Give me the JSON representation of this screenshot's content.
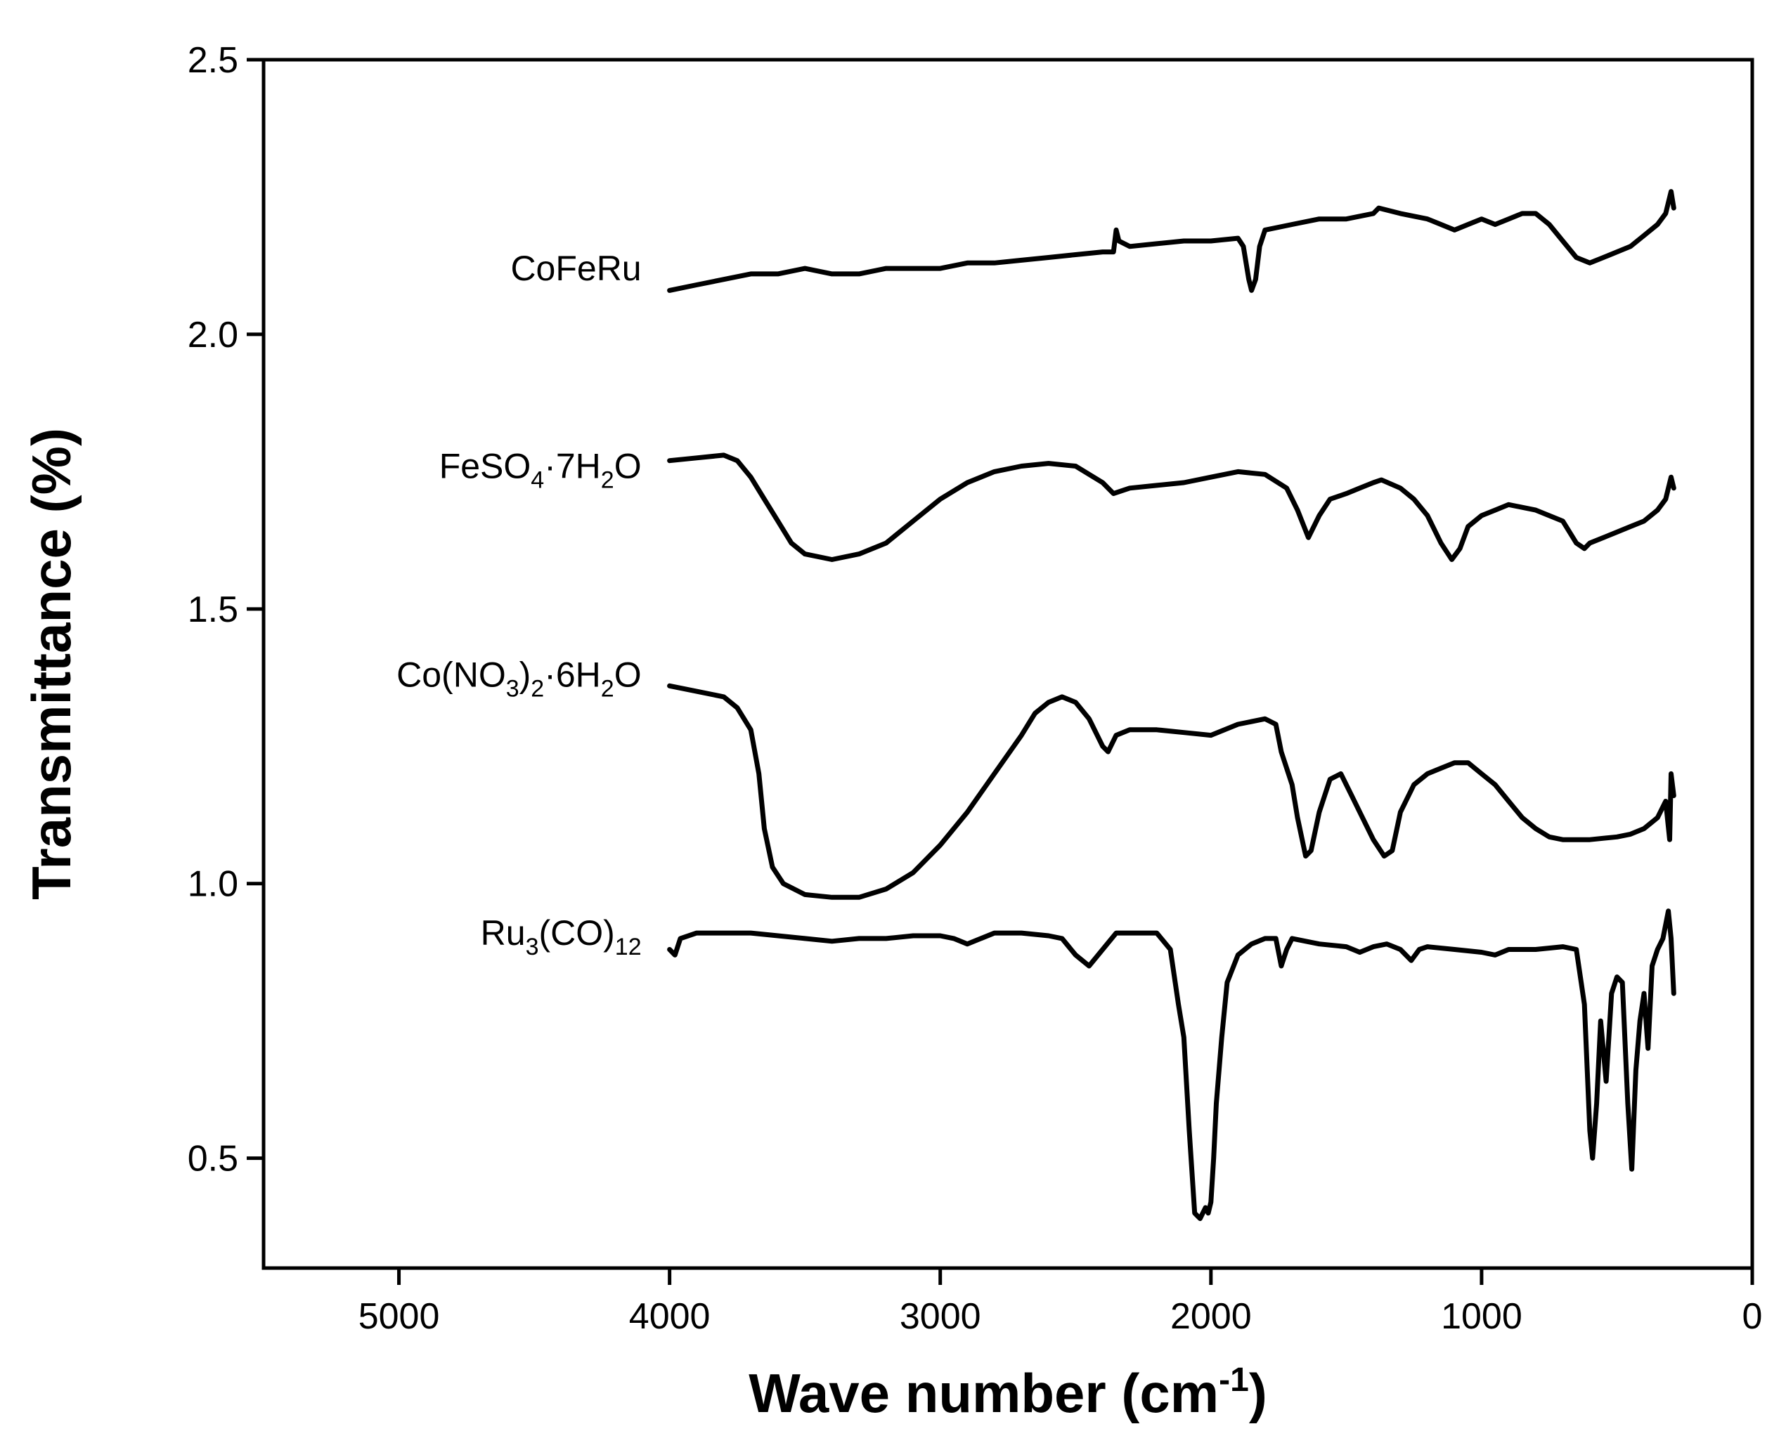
{
  "chart_data": {
    "type": "line",
    "xlabel": {
      "main": "Wave number (cm",
      "sup": "-1",
      "close": ")"
    },
    "ylabel": "Transmittance (%)",
    "xlim": [
      5500,
      0
    ],
    "ylim": [
      0.3,
      2.5
    ],
    "x_ticks": [
      5000,
      4000,
      3000,
      2000,
      1000,
      0
    ],
    "x_tick_labels": [
      "5000",
      "4000",
      "3000",
      "2000",
      "1000",
      "0"
    ],
    "y_ticks": [
      0.5,
      1.0,
      1.5,
      2.0,
      2.5
    ],
    "y_tick_labels": [
      "0.5",
      "1.0",
      "1.5",
      "2.0",
      "2.5"
    ],
    "series": [
      {
        "name": "CoFeRu",
        "label_parts": [
          {
            "t": "CoFeRu"
          }
        ],
        "label_y": 2.12,
        "points": [
          [
            4000,
            2.08
          ],
          [
            3900,
            2.09
          ],
          [
            3800,
            2.1
          ],
          [
            3700,
            2.11
          ],
          [
            3600,
            2.11
          ],
          [
            3500,
            2.12
          ],
          [
            3400,
            2.11
          ],
          [
            3300,
            2.11
          ],
          [
            3200,
            2.12
          ],
          [
            3100,
            2.12
          ],
          [
            3000,
            2.12
          ],
          [
            2900,
            2.13
          ],
          [
            2800,
            2.13
          ],
          [
            2700,
            2.135
          ],
          [
            2600,
            2.14
          ],
          [
            2500,
            2.145
          ],
          [
            2400,
            2.15
          ],
          [
            2360,
            2.15
          ],
          [
            2350,
            2.19
          ],
          [
            2340,
            2.17
          ],
          [
            2300,
            2.16
          ],
          [
            2200,
            2.165
          ],
          [
            2100,
            2.17
          ],
          [
            2000,
            2.17
          ],
          [
            1900,
            2.175
          ],
          [
            1880,
            2.16
          ],
          [
            1860,
            2.1
          ],
          [
            1850,
            2.08
          ],
          [
            1835,
            2.1
          ],
          [
            1820,
            2.16
          ],
          [
            1800,
            2.19
          ],
          [
            1700,
            2.2
          ],
          [
            1600,
            2.21
          ],
          [
            1500,
            2.21
          ],
          [
            1400,
            2.22
          ],
          [
            1380,
            2.23
          ],
          [
            1300,
            2.22
          ],
          [
            1200,
            2.21
          ],
          [
            1150,
            2.2
          ],
          [
            1100,
            2.19
          ],
          [
            1050,
            2.2
          ],
          [
            1000,
            2.21
          ],
          [
            950,
            2.2
          ],
          [
            900,
            2.21
          ],
          [
            850,
            2.22
          ],
          [
            800,
            2.22
          ],
          [
            750,
            2.2
          ],
          [
            700,
            2.17
          ],
          [
            650,
            2.14
          ],
          [
            600,
            2.13
          ],
          [
            550,
            2.14
          ],
          [
            500,
            2.15
          ],
          [
            450,
            2.16
          ],
          [
            400,
            2.18
          ],
          [
            350,
            2.2
          ],
          [
            320,
            2.22
          ],
          [
            300,
            2.26
          ],
          [
            290,
            2.23
          ]
        ]
      },
      {
        "name": "FeSO4·7H2O",
        "label_parts": [
          {
            "t": "FeSO"
          },
          {
            "t": "4",
            "sub": true
          },
          {
            "t": "·7H"
          },
          {
            "t": "2",
            "sub": true
          },
          {
            "t": "O"
          }
        ],
        "label_y": 1.76,
        "points": [
          [
            4000,
            1.77
          ],
          [
            3900,
            1.775
          ],
          [
            3800,
            1.78
          ],
          [
            3750,
            1.77
          ],
          [
            3700,
            1.74
          ],
          [
            3650,
            1.7
          ],
          [
            3600,
            1.66
          ],
          [
            3550,
            1.62
          ],
          [
            3500,
            1.6
          ],
          [
            3400,
            1.59
          ],
          [
            3300,
            1.6
          ],
          [
            3200,
            1.62
          ],
          [
            3100,
            1.66
          ],
          [
            3000,
            1.7
          ],
          [
            2900,
            1.73
          ],
          [
            2800,
            1.75
          ],
          [
            2700,
            1.76
          ],
          [
            2600,
            1.765
          ],
          [
            2500,
            1.76
          ],
          [
            2400,
            1.73
          ],
          [
            2360,
            1.71
          ],
          [
            2300,
            1.72
          ],
          [
            2200,
            1.725
          ],
          [
            2100,
            1.73
          ],
          [
            2000,
            1.74
          ],
          [
            1900,
            1.75
          ],
          [
            1800,
            1.745
          ],
          [
            1720,
            1.72
          ],
          [
            1680,
            1.68
          ],
          [
            1640,
            1.63
          ],
          [
            1600,
            1.67
          ],
          [
            1560,
            1.7
          ],
          [
            1500,
            1.71
          ],
          [
            1450,
            1.72
          ],
          [
            1400,
            1.73
          ],
          [
            1370,
            1.735
          ],
          [
            1300,
            1.72
          ],
          [
            1250,
            1.7
          ],
          [
            1200,
            1.67
          ],
          [
            1150,
            1.62
          ],
          [
            1110,
            1.59
          ],
          [
            1080,
            1.61
          ],
          [
            1050,
            1.65
          ],
          [
            1000,
            1.67
          ],
          [
            950,
            1.68
          ],
          [
            900,
            1.69
          ],
          [
            850,
            1.685
          ],
          [
            800,
            1.68
          ],
          [
            700,
            1.66
          ],
          [
            650,
            1.62
          ],
          [
            620,
            1.61
          ],
          [
            600,
            1.62
          ],
          [
            550,
            1.63
          ],
          [
            500,
            1.64
          ],
          [
            450,
            1.65
          ],
          [
            400,
            1.66
          ],
          [
            350,
            1.68
          ],
          [
            320,
            1.7
          ],
          [
            300,
            1.74
          ],
          [
            290,
            1.72
          ]
        ]
      },
      {
        "name": "Co(NO3)2·6H2O",
        "label_parts": [
          {
            "t": "Co(NO"
          },
          {
            "t": "3",
            "sub": true
          },
          {
            "t": ")"
          },
          {
            "t": "2",
            "sub": true
          },
          {
            "t": "·6H"
          },
          {
            "t": "2",
            "sub": true
          },
          {
            "t": "O"
          }
        ],
        "label_y": 1.38,
        "points": [
          [
            4000,
            1.36
          ],
          [
            3900,
            1.35
          ],
          [
            3800,
            1.34
          ],
          [
            3750,
            1.32
          ],
          [
            3700,
            1.28
          ],
          [
            3670,
            1.2
          ],
          [
            3650,
            1.1
          ],
          [
            3620,
            1.03
          ],
          [
            3580,
            1.0
          ],
          [
            3500,
            0.98
          ],
          [
            3400,
            0.975
          ],
          [
            3300,
            0.975
          ],
          [
            3200,
            0.99
          ],
          [
            3100,
            1.02
          ],
          [
            3000,
            1.07
          ],
          [
            2900,
            1.13
          ],
          [
            2800,
            1.2
          ],
          [
            2700,
            1.27
          ],
          [
            2650,
            1.31
          ],
          [
            2600,
            1.33
          ],
          [
            2550,
            1.34
          ],
          [
            2500,
            1.33
          ],
          [
            2450,
            1.3
          ],
          [
            2400,
            1.25
          ],
          [
            2380,
            1.24
          ],
          [
            2350,
            1.27
          ],
          [
            2300,
            1.28
          ],
          [
            2200,
            1.28
          ],
          [
            2100,
            1.275
          ],
          [
            2000,
            1.27
          ],
          [
            1900,
            1.29
          ],
          [
            1800,
            1.3
          ],
          [
            1760,
            1.29
          ],
          [
            1740,
            1.24
          ],
          [
            1700,
            1.18
          ],
          [
            1680,
            1.12
          ],
          [
            1650,
            1.05
          ],
          [
            1630,
            1.06
          ],
          [
            1600,
            1.13
          ],
          [
            1560,
            1.19
          ],
          [
            1520,
            1.2
          ],
          [
            1480,
            1.16
          ],
          [
            1440,
            1.12
          ],
          [
            1400,
            1.08
          ],
          [
            1360,
            1.05
          ],
          [
            1330,
            1.06
          ],
          [
            1300,
            1.13
          ],
          [
            1250,
            1.18
          ],
          [
            1200,
            1.2
          ],
          [
            1150,
            1.21
          ],
          [
            1100,
            1.22
          ],
          [
            1050,
            1.22
          ],
          [
            1000,
            1.2
          ],
          [
            950,
            1.18
          ],
          [
            900,
            1.15
          ],
          [
            850,
            1.12
          ],
          [
            800,
            1.1
          ],
          [
            750,
            1.085
          ],
          [
            700,
            1.08
          ],
          [
            600,
            1.08
          ],
          [
            500,
            1.085
          ],
          [
            450,
            1.09
          ],
          [
            400,
            1.1
          ],
          [
            350,
            1.12
          ],
          [
            320,
            1.15
          ],
          [
            305,
            1.08
          ],
          [
            300,
            1.2
          ],
          [
            290,
            1.16
          ]
        ]
      },
      {
        "name": "Ru3(CO)12",
        "label_parts": [
          {
            "t": "Ru"
          },
          {
            "t": "3",
            "sub": true
          },
          {
            "t": "(CO)"
          },
          {
            "t": "12",
            "sub": true
          }
        ],
        "label_y": 0.91,
        "points": [
          [
            4000,
            0.88
          ],
          [
            3980,
            0.87
          ],
          [
            3960,
            0.9
          ],
          [
            3900,
            0.91
          ],
          [
            3800,
            0.91
          ],
          [
            3700,
            0.91
          ],
          [
            3600,
            0.905
          ],
          [
            3500,
            0.9
          ],
          [
            3400,
            0.895
          ],
          [
            3300,
            0.9
          ],
          [
            3200,
            0.9
          ],
          [
            3100,
            0.905
          ],
          [
            3000,
            0.905
          ],
          [
            2950,
            0.9
          ],
          [
            2900,
            0.89
          ],
          [
            2850,
            0.9
          ],
          [
            2800,
            0.91
          ],
          [
            2700,
            0.91
          ],
          [
            2600,
            0.905
          ],
          [
            2550,
            0.9
          ],
          [
            2500,
            0.87
          ],
          [
            2450,
            0.85
          ],
          [
            2400,
            0.88
          ],
          [
            2350,
            0.91
          ],
          [
            2300,
            0.91
          ],
          [
            2200,
            0.91
          ],
          [
            2150,
            0.88
          ],
          [
            2120,
            0.78
          ],
          [
            2100,
            0.72
          ],
          [
            2080,
            0.55
          ],
          [
            2060,
            0.4
          ],
          [
            2040,
            0.39
          ],
          [
            2020,
            0.41
          ],
          [
            2010,
            0.4
          ],
          [
            2000,
            0.42
          ],
          [
            1990,
            0.5
          ],
          [
            1980,
            0.6
          ],
          [
            1960,
            0.72
          ],
          [
            1940,
            0.82
          ],
          [
            1900,
            0.87
          ],
          [
            1850,
            0.89
          ],
          [
            1800,
            0.9
          ],
          [
            1760,
            0.9
          ],
          [
            1740,
            0.85
          ],
          [
            1720,
            0.88
          ],
          [
            1700,
            0.9
          ],
          [
            1600,
            0.89
          ],
          [
            1500,
            0.885
          ],
          [
            1450,
            0.875
          ],
          [
            1400,
            0.885
          ],
          [
            1350,
            0.89
          ],
          [
            1300,
            0.88
          ],
          [
            1260,
            0.86
          ],
          [
            1230,
            0.88
          ],
          [
            1200,
            0.885
          ],
          [
            1100,
            0.88
          ],
          [
            1000,
            0.875
          ],
          [
            950,
            0.87
          ],
          [
            900,
            0.88
          ],
          [
            800,
            0.88
          ],
          [
            700,
            0.885
          ],
          [
            650,
            0.88
          ],
          [
            620,
            0.78
          ],
          [
            600,
            0.55
          ],
          [
            590,
            0.5
          ],
          [
            575,
            0.6
          ],
          [
            560,
            0.75
          ],
          [
            540,
            0.64
          ],
          [
            520,
            0.8
          ],
          [
            500,
            0.83
          ],
          [
            480,
            0.82
          ],
          [
            460,
            0.6
          ],
          [
            445,
            0.48
          ],
          [
            430,
            0.66
          ],
          [
            415,
            0.75
          ],
          [
            400,
            0.8
          ],
          [
            385,
            0.7
          ],
          [
            370,
            0.85
          ],
          [
            350,
            0.88
          ],
          [
            330,
            0.9
          ],
          [
            310,
            0.95
          ],
          [
            300,
            0.9
          ],
          [
            290,
            0.8
          ]
        ]
      }
    ]
  }
}
